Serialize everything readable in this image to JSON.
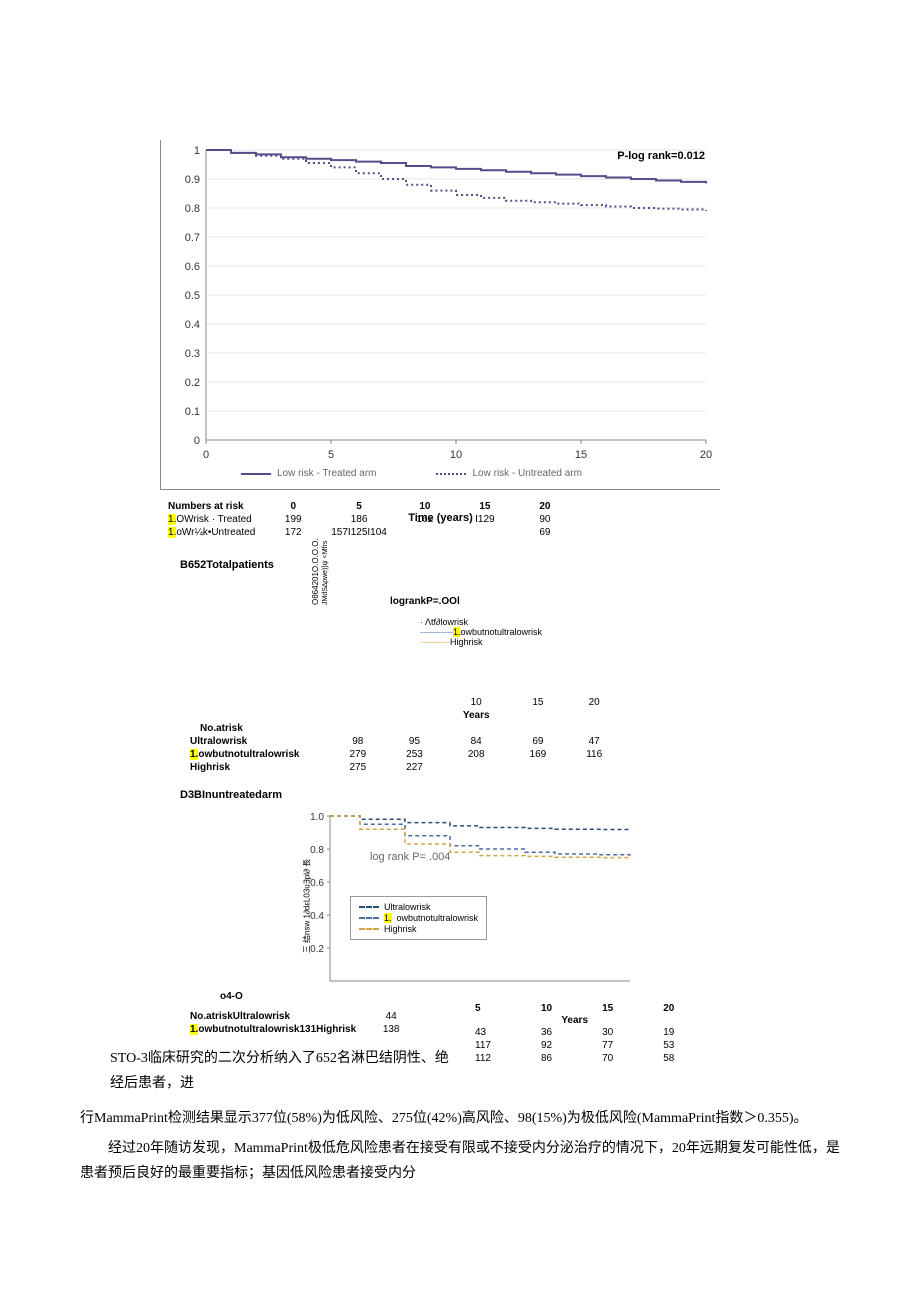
{
  "chartA": {
    "type": "line",
    "title_right": "P-log rank=0.012",
    "x_label": "Time (years)",
    "y_label": "",
    "xlim": [
      0,
      20
    ],
    "ylim": [
      0,
      1.0
    ],
    "ytick_step": 0.1,
    "x_ticks": [
      0,
      5,
      10,
      15,
      20
    ],
    "y_ticks": [
      0,
      0.1,
      0.2,
      0.3,
      0.4,
      0.5,
      0.6,
      0.7,
      0.8,
      0.9,
      1.0
    ],
    "grid_color": "#e5e5e5",
    "background_color": "#ffffff",
    "series": [
      {
        "name": "Low risk - Treated arm",
        "color": "#5b4a8a",
        "style": "solid",
        "line_width": 2,
        "x": [
          0,
          1,
          2,
          3,
          4,
          5,
          6,
          7,
          8,
          9,
          10,
          11,
          12,
          13,
          14,
          15,
          16,
          17,
          18,
          19,
          20
        ],
        "y": [
          1.0,
          0.99,
          0.985,
          0.975,
          0.97,
          0.965,
          0.96,
          0.955,
          0.945,
          0.94,
          0.935,
          0.93,
          0.925,
          0.92,
          0.915,
          0.91,
          0.905,
          0.9,
          0.895,
          0.89,
          0.885
        ]
      },
      {
        "name": "Low risk - Untreated arm",
        "color": "#5b4a8a",
        "style": "dotted",
        "line_width": 2,
        "x": [
          0,
          1,
          2,
          3,
          4,
          5,
          6,
          7,
          8,
          9,
          10,
          11,
          12,
          13,
          14,
          15,
          16,
          17,
          18,
          19,
          20
        ],
        "y": [
          1.0,
          0.99,
          0.98,
          0.97,
          0.955,
          0.94,
          0.92,
          0.9,
          0.88,
          0.86,
          0.845,
          0.835,
          0.825,
          0.82,
          0.815,
          0.81,
          0.805,
          0.8,
          0.798,
          0.795,
          0.79
        ]
      }
    ],
    "risk_header": "Numbers at risk",
    "risk_columns": [
      "0",
      "5",
      "10",
      "15",
      "20"
    ],
    "risk_rows": [
      {
        "label_pre": "1.",
        "label": "OWrisk · Treated",
        "hl": true,
        "values": [
          "199",
          "186",
          "162",
          "I129",
          "90"
        ]
      },
      {
        "label_pre": "1.",
        "label": "oWr¼k•Untreated",
        "hl": true,
        "values": [
          "172",
          "157I125I104",
          "",
          "",
          "69"
        ]
      }
    ]
  },
  "chartB": {
    "section_label": "B652Totalpatients",
    "rotated_text": "O864201O.O.O.O.",
    "rotated_text2": "JMdS∆pwe)}ψ <Mfrs",
    "p_text": "logrankP=.OOl",
    "legend_items": [
      {
        "label": "Λtf∂lowrisk",
        "color": "#2a4d7a",
        "dash": "dotted"
      },
      {
        "label_pre": "1.",
        "label": "owbutnotultralowrisk",
        "hl": true,
        "color": "#4a6fa5",
        "dash": "dashed"
      },
      {
        "label": "Highrisk",
        "color": "#d4a547",
        "dash": "dashed"
      }
    ],
    "x_ticks": [
      "10",
      "15",
      "20"
    ],
    "x_label": "Years",
    "risk_header": "No.atrisk",
    "risk_rows": [
      {
        "label": "Ultralowrisk",
        "values": [
          "98",
          "95",
          "84",
          "69",
          "47"
        ]
      },
      {
        "label_pre": "1.",
        "label": "owbutnotultralowrisk",
        "hl": true,
        "values": [
          "279",
          "253",
          "208",
          "169",
          "116"
        ]
      },
      {
        "label": "Highrisk",
        "values": [
          "275",
          "227",
          "",
          "",
          ""
        ]
      }
    ]
  },
  "chartD": {
    "section_label": "D3BInuntreatedarm",
    "type": "line",
    "p_text": "log rank P= .004",
    "x_label": "Years",
    "y_rotated": "三 结nsw 1∂dεL03u∃pl∂ 長",
    "xlim": [
      0,
      20
    ],
    "ylim": [
      0,
      1.0
    ],
    "x_ticks": [
      "5",
      "10",
      "15",
      "20"
    ],
    "y_ticks": [
      0.2,
      0.4,
      0.6,
      0.8,
      1.0
    ],
    "series": [
      {
        "name": "Ultralowrisk",
        "color": "#2a4d7a",
        "style": "dashed",
        "x": [
          0,
          2,
          5,
          8,
          10,
          13,
          15,
          18,
          20
        ],
        "y": [
          1.0,
          0.98,
          0.96,
          0.94,
          0.93,
          0.925,
          0.92,
          0.918,
          0.918
        ]
      },
      {
        "name_pre": "1.",
        "name": "owbutnotultralowrisk",
        "hl": true,
        "color": "#4a6fa5",
        "style": "dashed",
        "x": [
          0,
          2,
          5,
          8,
          10,
          13,
          15,
          18,
          20
        ],
        "y": [
          1.0,
          0.95,
          0.88,
          0.82,
          0.8,
          0.78,
          0.77,
          0.765,
          0.76
        ]
      },
      {
        "name": "Highrisk",
        "color": "#d4a547",
        "style": "dashed",
        "x": [
          0,
          2,
          5,
          8,
          10,
          13,
          15,
          18,
          20
        ],
        "y": [
          1.0,
          0.92,
          0.83,
          0.78,
          0.76,
          0.755,
          0.75,
          0.748,
          0.745
        ]
      }
    ],
    "o4o": "o4-O",
    "risk_header": "No.atriskUltralowrisk",
    "risk_first_val": "44",
    "risk_row2_label_pre": "1.",
    "risk_row2_label": "owbutnotultralowrisk131Highrisk",
    "risk_row2_val": "138",
    "body_intro": "STO-3临床研究的二次分析纳入了652名淋巴结阴性、绝经后患者，进",
    "nums_block": [
      [
        "43",
        "36",
        "30",
        "19"
      ],
      [
        "117",
        "92",
        "77",
        "53"
      ],
      [
        "112",
        "86",
        "70",
        "58"
      ]
    ]
  },
  "body": {
    "p1_cont": "行MammaPrint检测结果显示377位(58%)为低风险、275位(42%)高风险、98(15%)为极低风险(MammaPrint指数＞0.355)。",
    "p2": "经过20年随访发现，MammaPrint极低危风险患者在接受有限或不接受内分泌治疗的情况下，20年远期复发可能性低，是患者预后良好的最重要指标；基因低风险患者接受内分"
  }
}
